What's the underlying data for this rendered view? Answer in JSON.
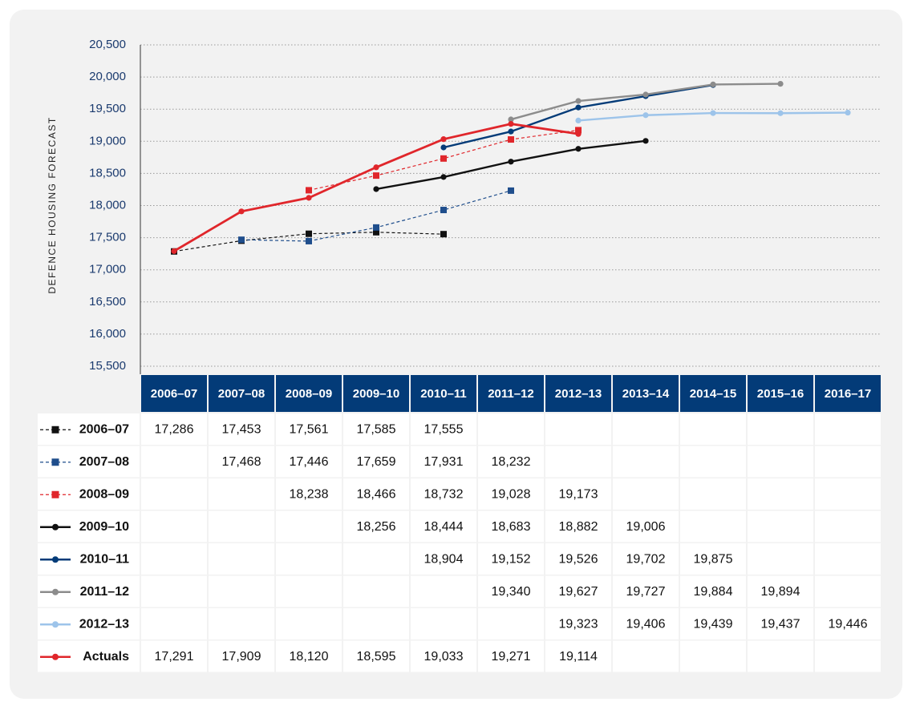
{
  "chart_data": {
    "type": "line",
    "y_label": "DEFENCE HOUSING FORECAST",
    "categories": [
      "2006–07",
      "2007–08",
      "2008–09",
      "2009–10",
      "2010–11",
      "2011–12",
      "2012–13",
      "2013–14",
      "2014–15",
      "2015–16",
      "2016–17"
    ],
    "ylim": [
      15500,
      20500
    ],
    "yticks": [
      {
        "value": 15500,
        "label": "15,500"
      },
      {
        "value": 16000,
        "label": "16,000"
      },
      {
        "value": 16500,
        "label": "16,500"
      },
      {
        "value": 17000,
        "label": "17,000"
      },
      {
        "value": 17500,
        "label": "17,500"
      },
      {
        "value": 18000,
        "label": "18,000"
      },
      {
        "value": 18500,
        "label": "18,500"
      },
      {
        "value": 19000,
        "label": "19,000"
      },
      {
        "value": 19500,
        "label": "19,500"
      },
      {
        "value": 20000,
        "label": "20,000"
      },
      {
        "value": 20500,
        "label": "20,500"
      }
    ],
    "grid": true,
    "series": [
      {
        "name": "2006–07",
        "color": "#111111",
        "dash": true,
        "marker": "square",
        "values": [
          17286,
          17453,
          17561,
          17585,
          17555,
          null,
          null,
          null,
          null,
          null,
          null
        ],
        "value_labels": [
          "17,286",
          "17,453",
          "17,561",
          "17,585",
          "17,555",
          null,
          null,
          null,
          null,
          null,
          null
        ]
      },
      {
        "name": "2007–08",
        "color": "#1f4e8c",
        "dash": true,
        "marker": "square",
        "values": [
          null,
          17468,
          17446,
          17659,
          17931,
          18232,
          null,
          null,
          null,
          null,
          null
        ],
        "value_labels": [
          null,
          "17,468",
          "17,446",
          "17,659",
          "17,931",
          "18,232",
          null,
          null,
          null,
          null,
          null
        ]
      },
      {
        "name": "2008–09",
        "color": "#e0262b",
        "dash": true,
        "marker": "square",
        "values": [
          null,
          null,
          18238,
          18466,
          18732,
          19028,
          19173,
          null,
          null,
          null,
          null
        ],
        "value_labels": [
          null,
          null,
          "18,238",
          "18,466",
          "18,732",
          "19,028",
          "19,173",
          null,
          null,
          null,
          null
        ]
      },
      {
        "name": "2009–10",
        "color": "#111111",
        "dash": false,
        "marker": "circle",
        "values": [
          null,
          null,
          null,
          18256,
          18444,
          18683,
          18882,
          19006,
          null,
          null,
          null
        ],
        "value_labels": [
          null,
          null,
          null,
          "18,256",
          "18,444",
          "18,683",
          "18,882",
          "19,006",
          null,
          null,
          null
        ]
      },
      {
        "name": "2010–11",
        "color": "#033b78",
        "dash": false,
        "marker": "circle",
        "values": [
          null,
          null,
          null,
          null,
          18904,
          19152,
          19526,
          19702,
          19875,
          null,
          null
        ],
        "value_labels": [
          null,
          null,
          null,
          null,
          "18,904",
          "19,152",
          "19,526",
          "19,702",
          "19,875",
          null,
          null
        ]
      },
      {
        "name": "2011–12",
        "color": "#8c8c8c",
        "dash": false,
        "marker": "circle",
        "values": [
          null,
          null,
          null,
          null,
          null,
          19340,
          19627,
          19727,
          19884,
          19894,
          null
        ],
        "value_labels": [
          null,
          null,
          null,
          null,
          null,
          "19,340",
          "19,627",
          "19,727",
          "19,884",
          "19,894",
          null
        ]
      },
      {
        "name": "2012–13",
        "color": "#9dc4ea",
        "dash": false,
        "marker": "circle",
        "values": [
          null,
          null,
          null,
          null,
          null,
          null,
          19323,
          19406,
          19439,
          19437,
          19446
        ],
        "value_labels": [
          null,
          null,
          null,
          null,
          null,
          null,
          "19,323",
          "19,406",
          "19,439",
          "19,437",
          "19,446"
        ]
      },
      {
        "name": "Actuals",
        "color": "#e0262b",
        "dash": false,
        "marker": "circle",
        "values": [
          17291,
          17909,
          18120,
          18595,
          19033,
          19271,
          19114,
          null,
          null,
          null,
          null
        ],
        "value_labels": [
          "17,291",
          "17,909",
          "18,120",
          "18,595",
          "19,033",
          "19,271",
          "19,114",
          null,
          null,
          null,
          null
        ]
      }
    ]
  }
}
